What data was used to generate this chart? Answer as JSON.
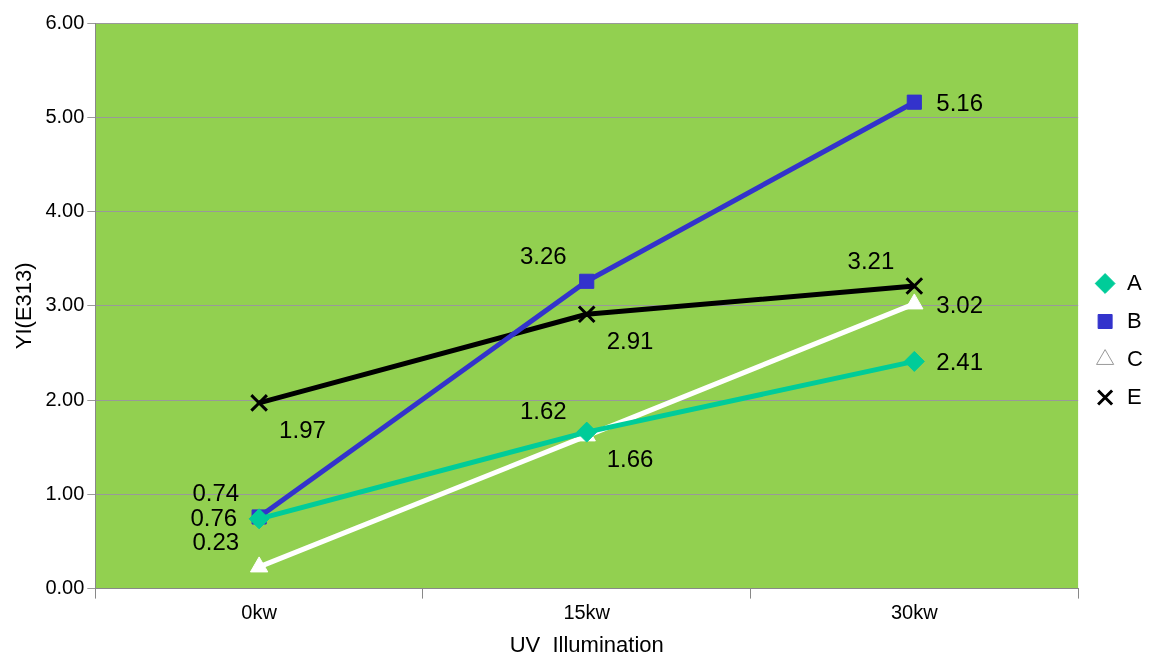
{
  "chart_data": {
    "type": "line",
    "xlabel": "UV  Illumination",
    "ylabel": "YI(E313)",
    "categories": [
      "0kw",
      "15kw",
      "30kw"
    ],
    "series": [
      {
        "name": "A",
        "color": "#00cc99",
        "values": [
          0.74,
          1.66,
          2.41
        ],
        "marker": "diamond"
      },
      {
        "name": "B",
        "color": "#3333cc",
        "values": [
          0.76,
          3.26,
          5.16
        ],
        "marker": "square"
      },
      {
        "name": "C",
        "color": "#ffffff",
        "values": [
          0.23,
          1.62,
          3.02
        ],
        "marker": "triangle"
      },
      {
        "name": "E",
        "color": "#000000",
        "values": [
          1.97,
          2.91,
          3.21
        ],
        "marker": "cross"
      }
    ],
    "ylim": [
      0,
      6
    ],
    "yticks": [
      {
        "value": 0,
        "label": "0.00"
      },
      {
        "value": 1,
        "label": "1.00"
      },
      {
        "value": 2,
        "label": "2.00"
      },
      {
        "value": 3,
        "label": "3.00"
      },
      {
        "value": 4,
        "label": "4.00"
      },
      {
        "value": 5,
        "label": "5.00"
      },
      {
        "value": 6,
        "label": "6.00"
      }
    ],
    "grid": "y",
    "legend": "right",
    "data_labels": true
  }
}
